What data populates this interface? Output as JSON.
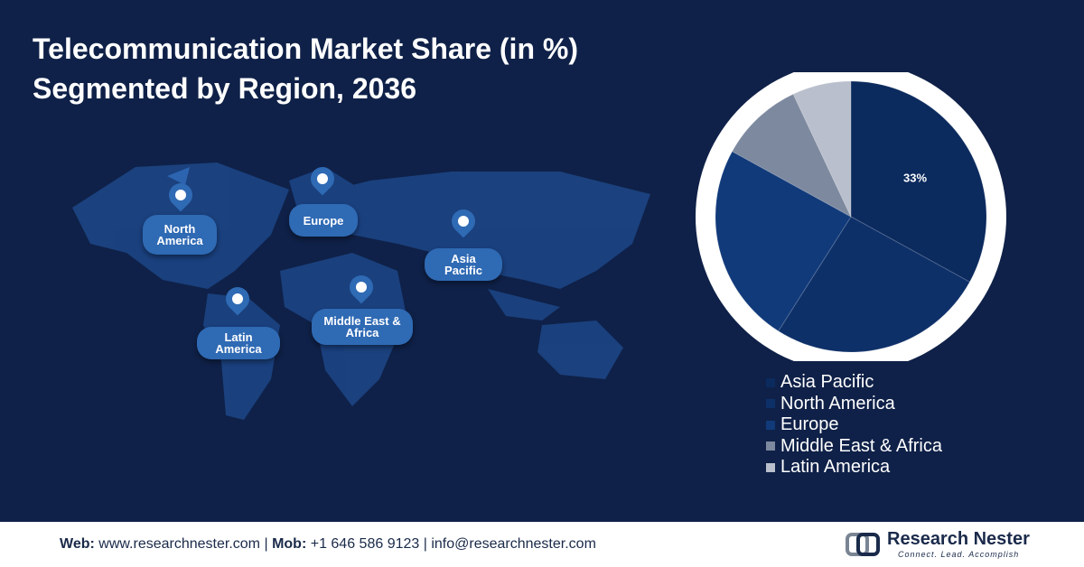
{
  "chart_data": {
    "type": "pie",
    "title": "Telecommunication Market Share (in %)",
    "subtitle": "Segmented by Region, 2036",
    "categories": [
      "Asia Pacific",
      "North America",
      "Europe",
      "Middle East & Africa",
      "Latin America"
    ],
    "values": [
      33,
      26,
      24,
      10,
      7
    ],
    "value_labels": [
      "33%",
      null,
      null,
      null,
      null
    ],
    "colors": [
      "#0b2a5e",
      "#0e3069",
      "#113a7a",
      "#7d899f",
      "#b9bfcc"
    ]
  },
  "map": {
    "pins": [
      "North America",
      "Europe",
      "Asia Pacific",
      "Latin America",
      "Middle East & Africa"
    ]
  },
  "footer": {
    "web_label": "Web:",
    "web": "www.researchnester.com",
    "mob_label": "Mob:",
    "mob": "+1 646 586 9123",
    "email": "info@researchnester.com",
    "separator": "|",
    "brand": "Research Nester",
    "tagline": "Connect. Lead. Accomplish"
  }
}
